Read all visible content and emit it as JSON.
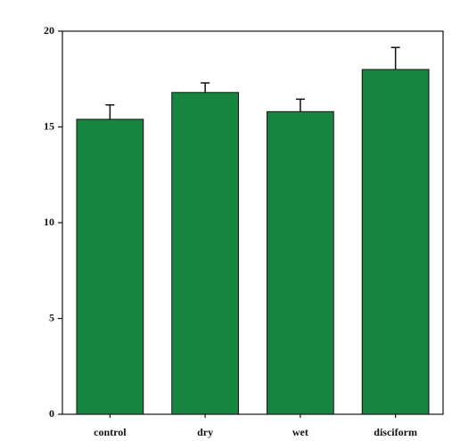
{
  "chart_data": {
    "type": "bar",
    "categories": [
      "control",
      "dry",
      "wet",
      "disciform"
    ],
    "values": [
      15.4,
      16.8,
      15.8,
      18.0
    ],
    "errors": [
      0.75,
      0.5,
      0.65,
      1.15
    ],
    "color": "#17853f",
    "ylim": [
      0,
      20
    ],
    "yticks": [
      0,
      5,
      10,
      15,
      20
    ],
    "grid": false
  }
}
